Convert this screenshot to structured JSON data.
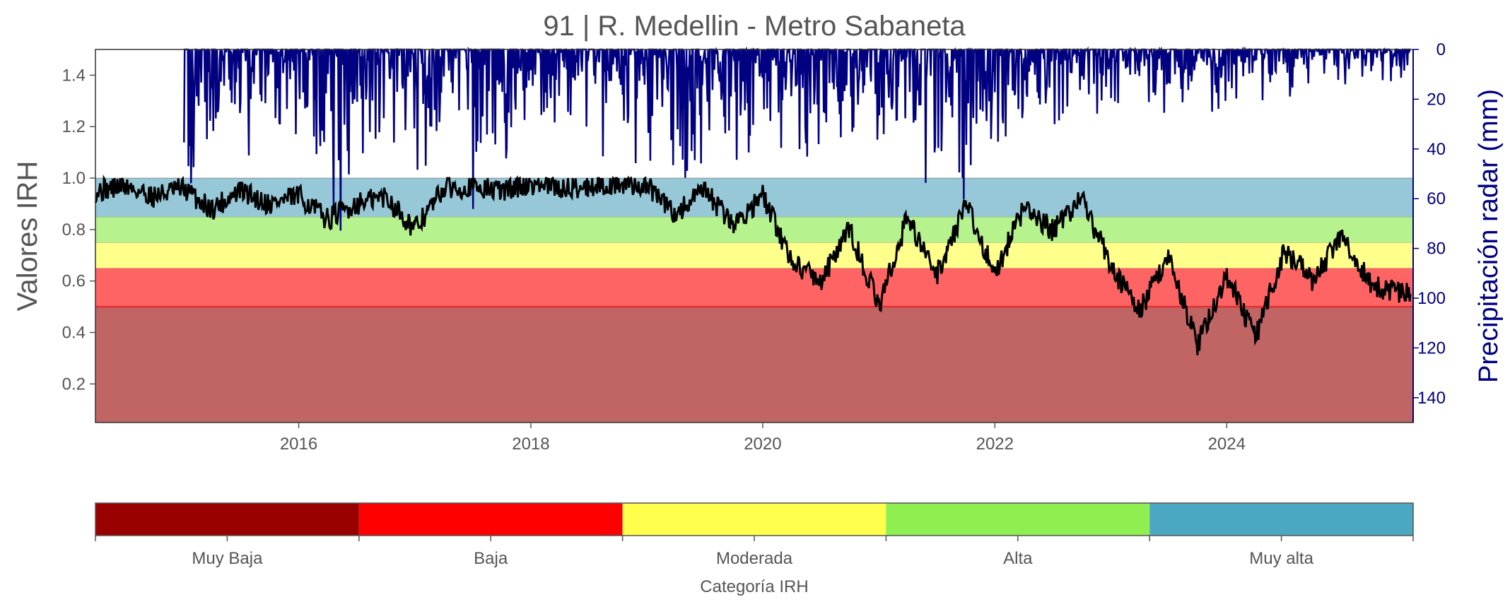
{
  "chart_data": [
    {
      "type": "line",
      "title": "91 | R. Medellin - Metro Sabaneta",
      "ylabel": "Valores IRH",
      "y2label": "Precipitación radar (mm)",
      "xlim": [
        "2014-04-01",
        "2025-08-10"
      ],
      "ylim": [
        0.05,
        1.5
      ],
      "y2lim": [
        150,
        0
      ],
      "y2_inverted": true,
      "grid": false,
      "x_ticks": [
        "2016",
        "2018",
        "2020",
        "2022",
        "2024"
      ],
      "y_ticks": [
        "0.2",
        "0.4",
        "0.6",
        "0.8",
        "1.0",
        "1.2",
        "1.4"
      ],
      "y2_ticks": [
        "0",
        "20",
        "40",
        "60",
        "80",
        "100",
        "120",
        "140"
      ],
      "bands": [
        {
          "category": "Muy Baja",
          "from": 0.05,
          "to": 0.5,
          "color": "#c06464"
        },
        {
          "category": "Baja",
          "from": 0.5,
          "to": 0.65,
          "color": "#ff6464"
        },
        {
          "category": "Moderada",
          "from": 0.65,
          "to": 0.75,
          "color": "#ffff8c"
        },
        {
          "category": "Alta",
          "from": 0.75,
          "to": 0.85,
          "color": "#b6f28e"
        },
        {
          "category": "Muy alta",
          "from": 0.85,
          "to": 1.0,
          "color": "#96c8d8"
        }
      ],
      "threshold_line": {
        "y": 0.5,
        "color": "#e03030"
      },
      "series": [
        {
          "axis": "left",
          "color": "#000000",
          "x": [
            "2014-04-01",
            "2014-07-01",
            "2014-10-01",
            "2015-01-01",
            "2015-04-01",
            "2015-07-01",
            "2015-10-01",
            "2016-01-01",
            "2016-04-01",
            "2016-07-01",
            "2016-10-01",
            "2017-01-01",
            "2017-04-01",
            "2017-07-01",
            "2017-10-01",
            "2018-01-01",
            "2018-04-01",
            "2018-07-01",
            "2018-10-01",
            "2019-01-01",
            "2019-04-01",
            "2019-07-01",
            "2019-10-01",
            "2020-01-01",
            "2020-04-01",
            "2020-07-01",
            "2020-10-01",
            "2021-01-01",
            "2021-04-01",
            "2021-07-01",
            "2021-10-01",
            "2022-01-01",
            "2022-04-01",
            "2022-07-01",
            "2022-10-01",
            "2023-01-01",
            "2023-04-01",
            "2023-07-01",
            "2023-10-01",
            "2024-01-01",
            "2024-04-01",
            "2024-07-01",
            "2024-10-01",
            "2025-01-01",
            "2025-04-01",
            "2025-08-01"
          ],
          "y": [
            0.95,
            0.97,
            0.93,
            0.96,
            0.88,
            0.95,
            0.9,
            0.93,
            0.84,
            0.9,
            0.93,
            0.8,
            0.96,
            0.97,
            0.95,
            0.98,
            0.96,
            0.97,
            0.98,
            0.97,
            0.86,
            0.95,
            0.82,
            0.93,
            0.68,
            0.6,
            0.8,
            0.5,
            0.85,
            0.62,
            0.9,
            0.63,
            0.88,
            0.8,
            0.92,
            0.66,
            0.48,
            0.7,
            0.35,
            0.62,
            0.38,
            0.72,
            0.6,
            0.78,
            0.58,
            0.55
          ]
        },
        {
          "axis": "right",
          "color": "#000080",
          "x": [
            "2015-01-05",
            "2015-06-10",
            "2015-09-20",
            "2016-01-15",
            "2016-05-10",
            "2016-11-20",
            "2017-03-15",
            "2017-08-10",
            "2018-01-20",
            "2018-06-15",
            "2018-11-05",
            "2019-04-10",
            "2019-09-25",
            "2020-02-10",
            "2020-07-15",
            "2020-12-05",
            "2021-05-20",
            "2021-11-10",
            "2022-04-15",
            "2022-10-10",
            "2023-03-20",
            "2023-09-15",
            "2024-03-10",
            "2024-09-20",
            "2025-03-15",
            "2025-08-01"
          ],
          "y": [
            40,
            35,
            36,
            28,
            52,
            30,
            45,
            42,
            32,
            25,
            30,
            38,
            32,
            30,
            35,
            30,
            42,
            40,
            25,
            20,
            18,
            22,
            15,
            12,
            10,
            8
          ]
        }
      ]
    },
    {
      "type": "colorbar",
      "xlabel": "Categoría IRH",
      "categories": [
        "Muy Baja",
        "Baja",
        "Moderada",
        "Alta",
        "Muy alta"
      ],
      "colors": [
        "#990000",
        "#ff0000",
        "#ffff4c",
        "#8fef50",
        "#4ba8c2"
      ]
    }
  ]
}
